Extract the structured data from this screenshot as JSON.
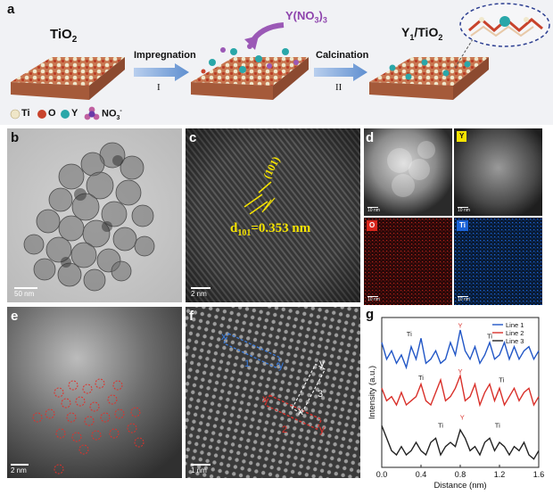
{
  "panel_labels": {
    "a": "a",
    "b": "b",
    "c": "c",
    "d": "d",
    "e": "e",
    "f": "f",
    "g": "g"
  },
  "schematic": {
    "tio2": "TiO",
    "tio2_sub": "2",
    "reagent": "Y(NO",
    "reagent_sub": "3",
    "reagent_close": ")",
    "reagent_sub2": "3",
    "step1": "Impregnation",
    "step1_num": "I",
    "step2": "Calcination",
    "step2_num": "II",
    "product_a": "Y",
    "product_sub": "1",
    "product_b": "/TiO",
    "product_sub2": "2",
    "legend_ti": "Ti",
    "legend_o": "O",
    "legend_y": "Y",
    "legend_no3": "NO",
    "legend_no3_sub": "3",
    "legend_no3_sup": "-",
    "colors": {
      "ti": "#efe6c8",
      "o": "#c8432c",
      "y": "#2aa7a9",
      "no3": "#9b59b6",
      "arrow": "#7fa6d8",
      "surface": "#c47a52"
    }
  },
  "tem_b": {
    "scale": "50 nm"
  },
  "hrtem_c": {
    "plane": "(101)",
    "d_text": "d",
    "d_sub": "101",
    "d_value": "=0.353 nm",
    "scale": "2 nm"
  },
  "eds_d": {
    "y_tag": "Y",
    "o_tag": "O",
    "ti_tag": "Ti",
    "scale": "10 nm",
    "colors": {
      "y": "#f5e300",
      "o": "#d8261c",
      "ti": "#1b63d8"
    }
  },
  "haadf_e": {
    "scale": "2 nm"
  },
  "haadf_f": {
    "scale": "1 nm",
    "labels": {
      "x": "x",
      "y": "y",
      "line1": "1",
      "line2": "2",
      "line3": "3"
    }
  },
  "chart_data": {
    "type": "line",
    "xlabel": "Distance (nm)",
    "ylabel": "Intensity (a.u.)",
    "xlim": [
      0.0,
      1.6
    ],
    "xticks": [
      "0.0",
      "0.4",
      "0.8",
      "1.2",
      "1.6"
    ],
    "grid": false,
    "legend_position": "top-right",
    "series": [
      {
        "name": "Line 1",
        "color": "#2156c6",
        "x": [
          0.0,
          0.05,
          0.1,
          0.15,
          0.2,
          0.25,
          0.3,
          0.35,
          0.4,
          0.45,
          0.5,
          0.55,
          0.6,
          0.65,
          0.7,
          0.75,
          0.8,
          0.85,
          0.9,
          0.95,
          1.0,
          1.05,
          1.1,
          1.15,
          1.2,
          1.25,
          1.3,
          1.35,
          1.4,
          1.45,
          1.5,
          1.55,
          1.6
        ],
        "y": [
          3.0,
          2.6,
          2.8,
          2.5,
          2.7,
          2.4,
          2.9,
          2.6,
          3.1,
          2.5,
          2.6,
          2.8,
          2.5,
          2.6,
          3.0,
          2.7,
          3.3,
          2.8,
          2.6,
          2.9,
          2.5,
          2.7,
          3.0,
          2.6,
          2.7,
          3.0,
          2.6,
          2.9,
          2.6,
          2.8,
          2.9,
          2.6,
          2.8
        ]
      },
      {
        "name": "Line 2",
        "color": "#d9302a",
        "x": [
          0.0,
          0.05,
          0.1,
          0.15,
          0.2,
          0.25,
          0.3,
          0.35,
          0.4,
          0.45,
          0.5,
          0.55,
          0.6,
          0.65,
          0.7,
          0.75,
          0.8,
          0.85,
          0.9,
          0.95,
          1.0,
          1.05,
          1.1,
          1.15,
          1.2,
          1.25,
          1.3,
          1.35,
          1.4,
          1.45,
          1.5,
          1.55,
          1.6
        ],
        "y": [
          1.9,
          1.6,
          1.7,
          1.5,
          1.8,
          1.5,
          1.6,
          1.7,
          2.0,
          1.6,
          1.5,
          1.8,
          2.1,
          1.6,
          1.7,
          1.9,
          2.2,
          1.6,
          1.7,
          2.0,
          1.5,
          1.8,
          2.0,
          1.6,
          1.9,
          1.5,
          1.7,
          1.9,
          1.6,
          1.8,
          1.9,
          1.5,
          1.7
        ]
      },
      {
        "name": "Line 3",
        "color": "#222222",
        "x": [
          0.0,
          0.05,
          0.1,
          0.15,
          0.2,
          0.25,
          0.3,
          0.35,
          0.4,
          0.45,
          0.5,
          0.55,
          0.6,
          0.65,
          0.7,
          0.75,
          0.8,
          0.85,
          0.9,
          0.95,
          1.0,
          1.05,
          1.1,
          1.15,
          1.2,
          1.25,
          1.3,
          1.35,
          1.4,
          1.45,
          1.5,
          1.55,
          1.6
        ],
        "y": [
          1.0,
          0.7,
          0.4,
          0.3,
          0.5,
          0.3,
          0.4,
          0.6,
          0.4,
          0.3,
          0.6,
          0.7,
          0.3,
          0.5,
          0.6,
          0.5,
          0.9,
          0.7,
          0.4,
          0.5,
          0.3,
          0.6,
          0.7,
          0.4,
          0.6,
          0.5,
          0.3,
          0.5,
          0.4,
          0.6,
          0.3,
          0.2,
          0.4
        ]
      }
    ],
    "annotations": [
      {
        "text": "Ti",
        "x": 0.28,
        "y": 3.15,
        "color": "#222"
      },
      {
        "text": "Y",
        "x": 0.8,
        "y": 3.35,
        "color": "#d9302a"
      },
      {
        "text": "Ti",
        "x": 1.1,
        "y": 3.1,
        "color": "#222"
      },
      {
        "text": "Ti",
        "x": 0.4,
        "y": 2.1,
        "color": "#222"
      },
      {
        "text": "Y",
        "x": 0.8,
        "y": 2.25,
        "color": "#d9302a"
      },
      {
        "text": "Ti",
        "x": 1.22,
        "y": 2.05,
        "color": "#222"
      },
      {
        "text": "Ti",
        "x": 0.6,
        "y": 0.95,
        "color": "#222"
      },
      {
        "text": "Y",
        "x": 0.82,
        "y": 1.15,
        "color": "#d9302a"
      },
      {
        "text": "Ti",
        "x": 1.18,
        "y": 0.95,
        "color": "#222"
      }
    ],
    "ylim": [
      0.0,
      3.6
    ]
  }
}
